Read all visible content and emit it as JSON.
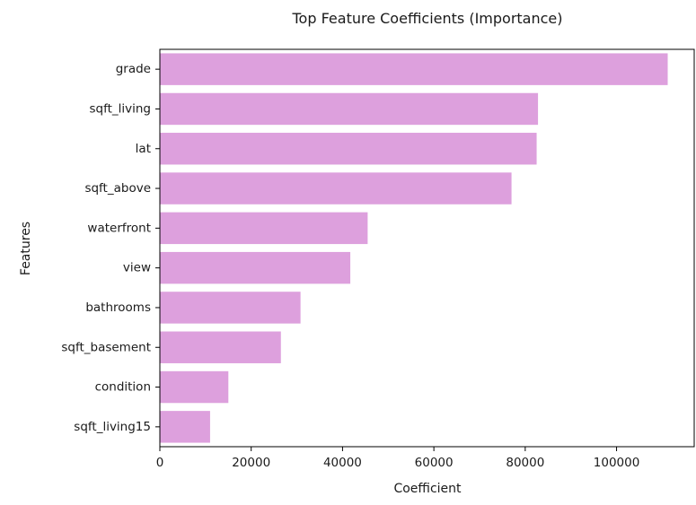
{
  "chart_data": {
    "type": "bar",
    "orientation": "horizontal",
    "title": "Top Feature Coefficients (Importance)",
    "xlabel": "Coefficient",
    "ylabel": "Features",
    "categories": [
      "grade",
      "sqft_living",
      "lat",
      "sqft_above",
      "waterfront",
      "view",
      "bathrooms",
      "sqft_basement",
      "condition",
      "sqft_living15"
    ],
    "values": [
      111200,
      82800,
      82500,
      77000,
      45500,
      41700,
      30800,
      26500,
      15000,
      11000
    ],
    "xlim": [
      0,
      117000
    ],
    "xticks": [
      0,
      20000,
      40000,
      60000,
      80000,
      100000
    ],
    "xtick_labels": [
      "0",
      "20000",
      "40000",
      "60000",
      "80000",
      "100000"
    ],
    "bar_color": "#dda0dd",
    "grid": false,
    "legend": false
  }
}
